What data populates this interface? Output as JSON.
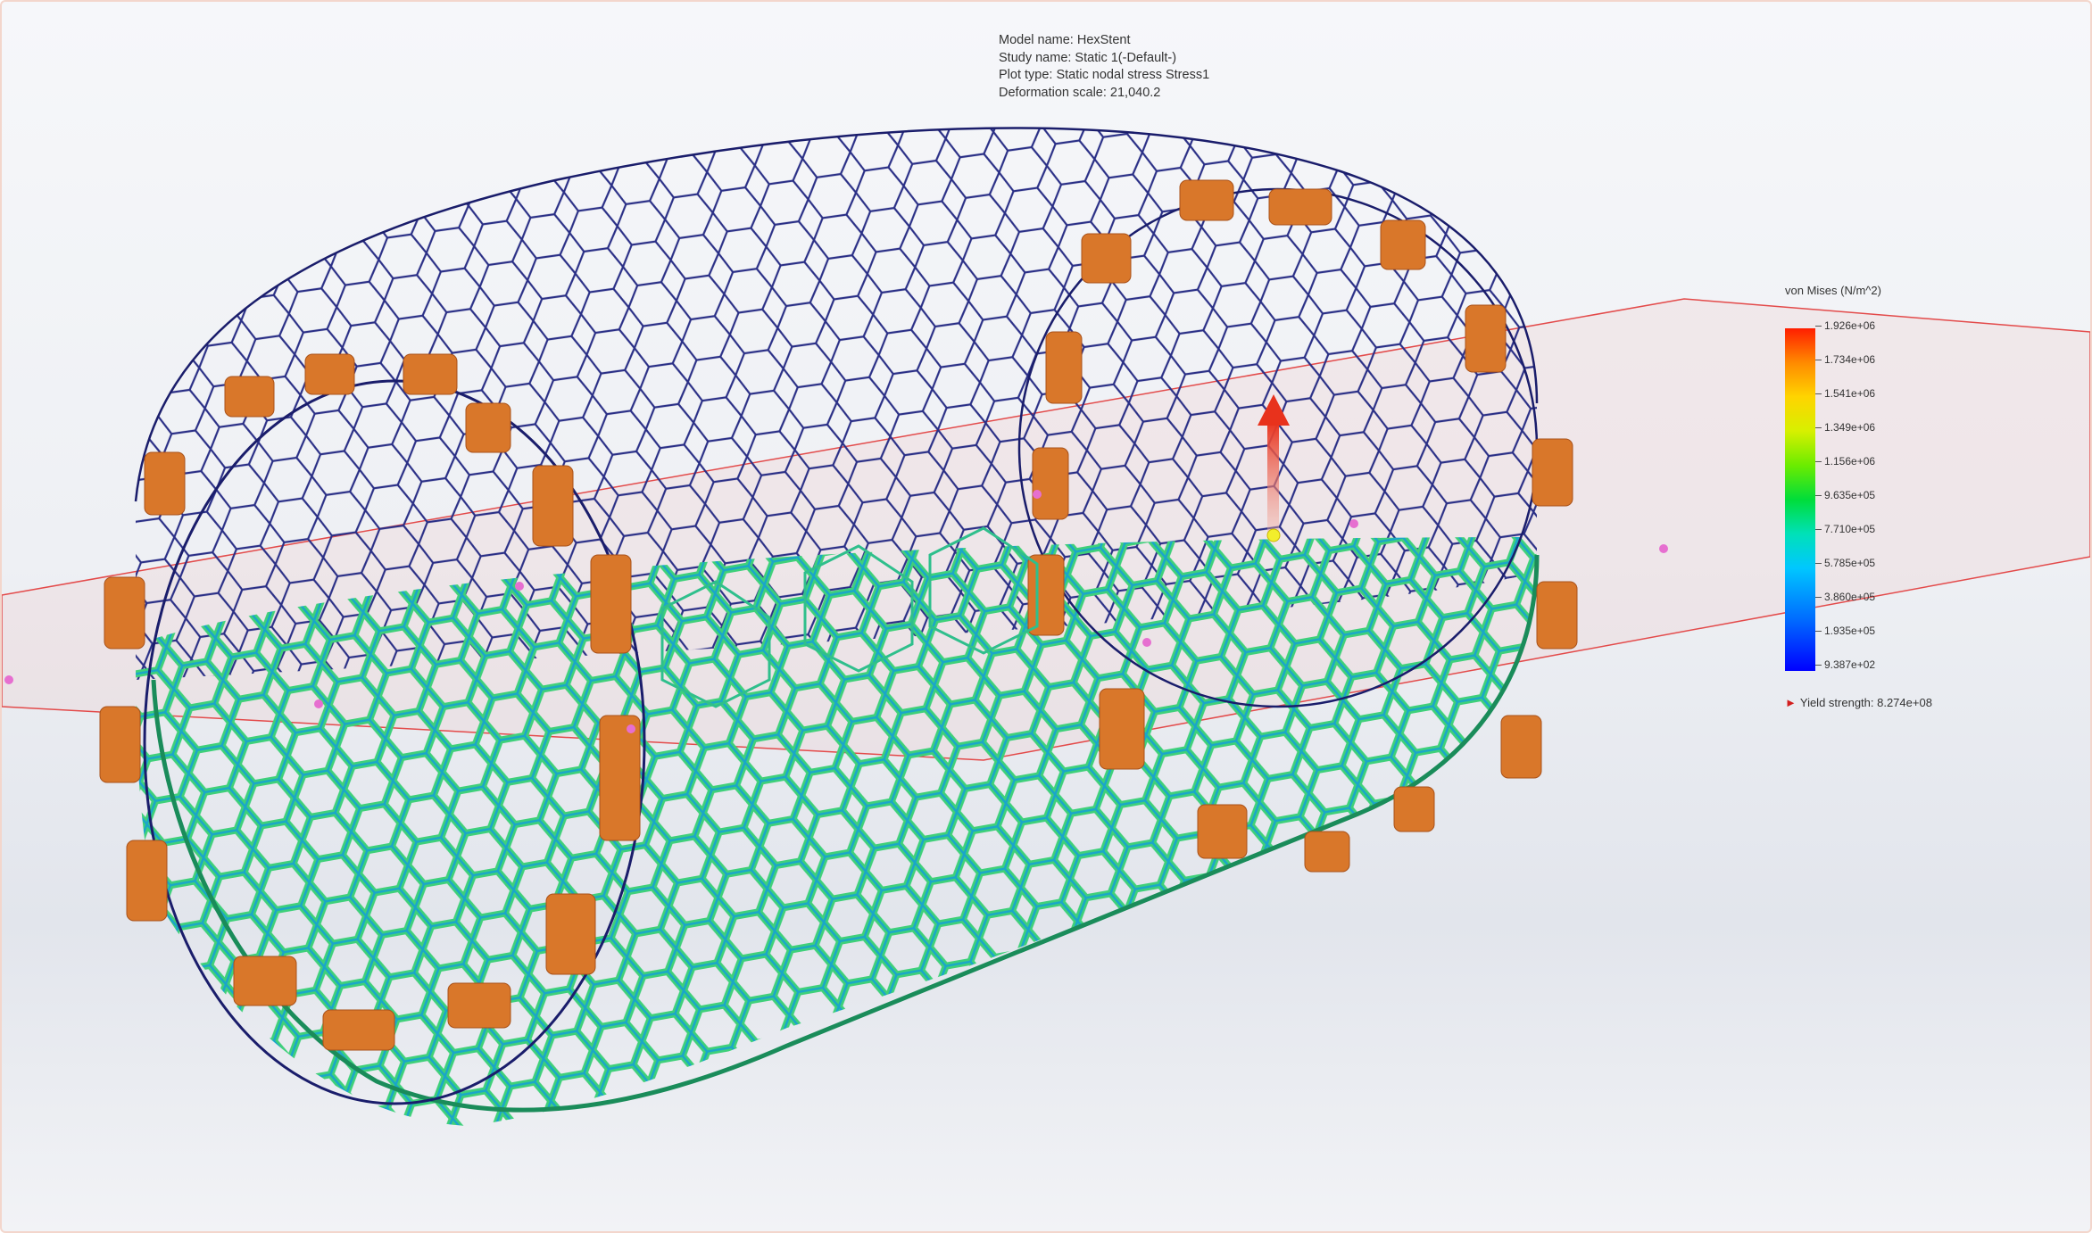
{
  "study_info": {
    "model_name": "Model name: HexStent",
    "study_name": "Study name: Static 1(-Default-)",
    "plot_type": "Plot type: Static nodal stress Stress1",
    "deformation_scale": "Deformation scale: 21,040.2"
  },
  "legend": {
    "title": "von Mises (N/m^2)",
    "ticks": [
      "1.926e+06",
      "1.734e+06",
      "1.541e+06",
      "1.349e+06",
      "1.156e+06",
      "9.635e+05",
      "7.710e+05",
      "5.785e+05",
      "3.860e+05",
      "1.935e+05",
      "9.387e+02"
    ],
    "yield_strength": "Yield strength: 8.274e+08"
  },
  "colors": {
    "mesh_wire": "#1a1d6b",
    "stress_low": "#0000ff",
    "stress_mid": "#2ee86a",
    "stress_high": "#ff1e00",
    "fixture": "#d9772a",
    "plane": "#e34a4a",
    "load_arrow": "#e8321c"
  },
  "icons": {
    "fixture_markers": "fixture-icon",
    "load_arrow": "force-arrow-icon",
    "yield_marker": "yield-arrow-icon"
  }
}
